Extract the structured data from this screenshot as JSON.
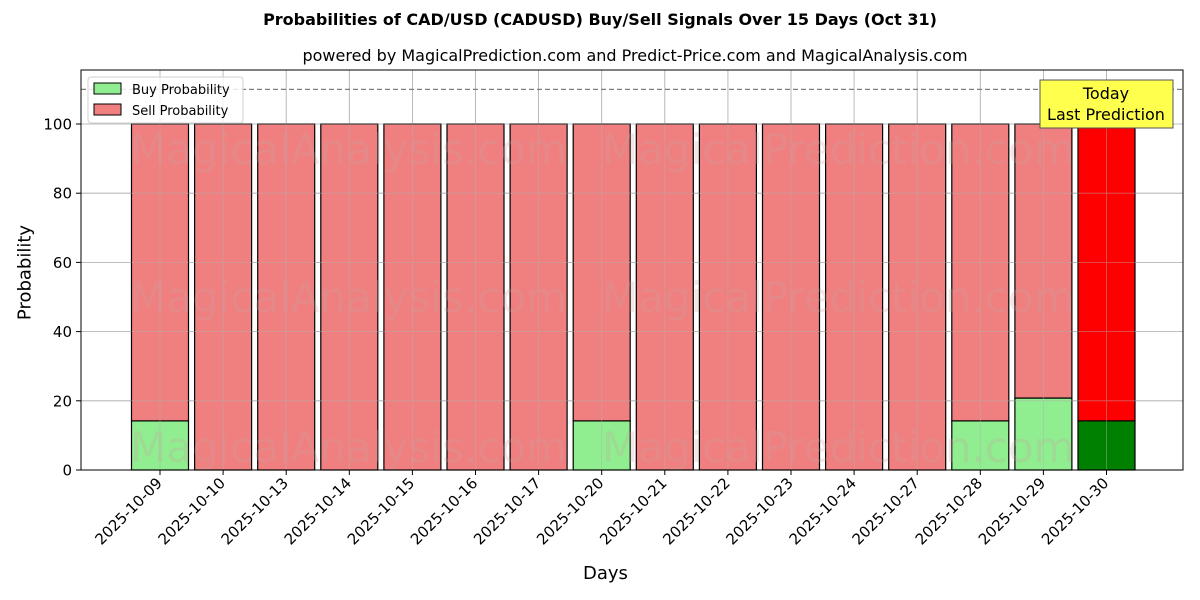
{
  "header": {
    "title": "Probabilities of CAD/USD (CADUSD) Buy/Sell Signals Over 15 Days (Oct 31)",
    "subtitle": "powered by MagicalPrediction.com and Predict-Price.com and MagicalAnalysis.com"
  },
  "watermarks": [
    "MagicalAnalysis.com",
    "MagicalPrediction.com"
  ],
  "annotation": {
    "line1": "Today",
    "line2": "Last Prediction"
  },
  "colors": {
    "buy": "#90ee90",
    "sell": "#f08080",
    "buy_today": "#008000",
    "sell_today": "#ff0000",
    "annotation_bg": "#ffff4d"
  },
  "chart_data": {
    "type": "bar",
    "stacked": true,
    "title": "Probabilities of CAD/USD (CADUSD) Buy/Sell Signals Over 15 Days (Oct 31)",
    "subtitle": "powered by MagicalPrediction.com and Predict-Price.com and MagicalAnalysis.com",
    "xlabel": "Days",
    "ylabel": "Probability",
    "ylim": [
      0,
      115
    ],
    "yticks": [
      0,
      20,
      40,
      60,
      80,
      100
    ],
    "grid": true,
    "legend_position": "upper left",
    "reference_line": {
      "y": 110,
      "style": "dashed"
    },
    "categories": [
      "2025-10-09",
      "2025-10-10",
      "2025-10-13",
      "2025-10-14",
      "2025-10-15",
      "2025-10-16",
      "2025-10-17",
      "2025-10-20",
      "2025-10-21",
      "2025-10-22",
      "2025-10-23",
      "2025-10-24",
      "2025-10-27",
      "2025-10-28",
      "2025-10-29",
      "2025-10-30"
    ],
    "series": [
      {
        "name": "Buy Probability",
        "values": [
          14.2,
          0,
          0,
          0,
          0,
          0,
          0,
          14.2,
          0,
          0,
          0,
          0,
          0,
          14.2,
          20.8,
          14.2
        ]
      },
      {
        "name": "Sell Probability",
        "values": [
          85.8,
          100,
          100,
          100,
          100,
          100,
          100,
          85.8,
          100,
          100,
          100,
          100,
          100,
          85.8,
          79.2,
          85.8
        ]
      }
    ],
    "annotations": [
      {
        "text": "Today\nLast Prediction",
        "x": "2025-10-30"
      }
    ]
  }
}
